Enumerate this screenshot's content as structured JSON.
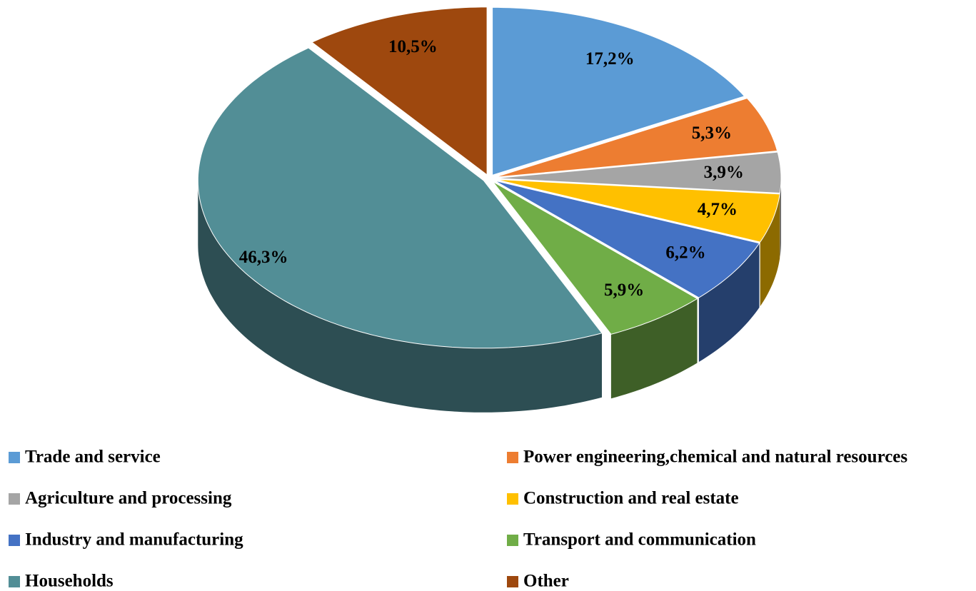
{
  "chart_data": {
    "type": "pie",
    "categories": [
      "Trade and service",
      "Power engineering,chemical and natural resources",
      "Agriculture and processing",
      "Construction and real estate",
      "Industry and manufacturing",
      "Transport and communication",
      "Households",
      "Other"
    ],
    "values": [
      17.2,
      5.3,
      3.9,
      4.7,
      6.2,
      5.9,
      46.3,
      10.5
    ],
    "value_labels": [
      "17,2%",
      "5,3%",
      "3,9%",
      "4,7%",
      "6,2%",
      "5,9%",
      "46,3%",
      "10,5%"
    ],
    "colors": [
      "#5b9bd5",
      "#ed7d31",
      "#a5a5a5",
      "#ffc000",
      "#4472c4",
      "#70ad47",
      "#528e96",
      "#9e480e"
    ],
    "legend": "bottom"
  }
}
